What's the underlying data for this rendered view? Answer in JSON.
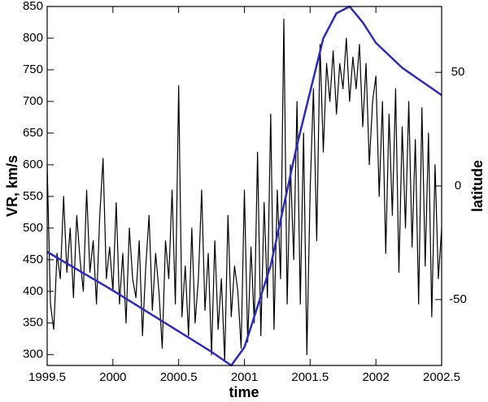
{
  "chart_data": {
    "type": "line",
    "xlabel": "time",
    "ylabel": "VR, km/s",
    "y2label": "latitude",
    "xlim": [
      1999.5,
      2002.5
    ],
    "xticks": [
      1999.5,
      2000,
      2000.5,
      2001,
      2001.5,
      2002,
      2002.5
    ],
    "ylim": [
      283,
      850
    ],
    "yticks": [
      300,
      350,
      400,
      450,
      500,
      550,
      600,
      650,
      700,
      750,
      800,
      850
    ],
    "y2lim": [
      -79,
      79
    ],
    "y2ticks": [
      -50,
      0,
      50
    ],
    "series": [
      {
        "color": "#000000",
        "x": [
          1999.5,
          1999.525,
          1999.55,
          1999.575,
          1999.6,
          1999.625,
          1999.65,
          1999.675,
          1999.7,
          1999.725,
          1999.75,
          1999.775,
          1999.8,
          1999.825,
          1999.85,
          1999.875,
          1999.9,
          1999.925,
          1999.95,
          1999.975,
          2000,
          2000.025,
          2000.05,
          2000.075,
          2000.1,
          2000.125,
          2000.15,
          2000.175,
          2000.2,
          2000.225,
          2000.25,
          2000.275,
          2000.3,
          2000.325,
          2000.35,
          2000.375,
          2000.4,
          2000.425,
          2000.45,
          2000.475,
          2000.5,
          2000.525,
          2000.55,
          2000.575,
          2000.6,
          2000.625,
          2000.65,
          2000.675,
          2000.7,
          2000.725,
          2000.75,
          2000.775,
          2000.8,
          2000.825,
          2000.85,
          2000.875,
          2000.9,
          2000.925,
          2000.95,
          2000.975,
          2001,
          2001.025,
          2001.05,
          2001.075,
          2001.1,
          2001.125,
          2001.15,
          2001.175,
          2001.2,
          2001.225,
          2001.25,
          2001.275,
          2001.3,
          2001.325,
          2001.35,
          2001.375,
          2001.4,
          2001.425,
          2001.45,
          2001.475,
          2001.5,
          2001.525,
          2001.55,
          2001.575,
          2001.6,
          2001.625,
          2001.65,
          2001.675,
          2001.7,
          2001.725,
          2001.75,
          2001.775,
          2001.8,
          2001.825,
          2001.85,
          2001.875,
          2001.9,
          2001.925,
          2001.95,
          2001.975,
          2002,
          2002.025,
          2002.05,
          2002.075,
          2002.1,
          2002.125,
          2002.15,
          2002.175,
          2002.2,
          2002.225,
          2002.25,
          2002.275,
          2002.3,
          2002.325,
          2002.35,
          2002.375,
          2002.4,
          2002.425,
          2002.45,
          2002.475,
          2002.5
        ],
        "values": [
          600,
          380,
          340,
          460,
          420,
          550,
          430,
          500,
          390,
          520,
          450,
          400,
          560,
          430,
          480,
          380,
          520,
          610,
          420,
          470,
          400,
          540,
          380,
          460,
          350,
          500,
          420,
          390,
          480,
          330,
          440,
          520,
          370,
          460,
          400,
          310,
          480,
          420,
          560,
          380,
          725,
          360,
          440,
          330,
          500,
          350,
          420,
          560,
          370,
          460,
          300,
          480,
          340,
          420,
          290,
          520,
          360,
          440,
          400,
          310,
          560,
          320,
          470,
          350,
          620,
          330,
          540,
          390,
          680,
          340,
          560,
          420,
          830,
          380,
          600,
          450,
          700,
          380,
          650,
          300,
          560,
          720,
          480,
          790,
          620,
          760,
          700,
          780,
          680,
          760,
          720,
          800,
          700,
          770,
          720,
          790,
          660,
          760,
          600,
          700,
          740,
          550,
          700,
          460,
          680,
          520,
          720,
          430,
          660,
          500,
          700,
          470,
          640,
          380,
          690,
          440,
          650,
          360,
          600,
          420,
          500
        ]
      },
      {
        "color": "#2b2bc0",
        "axis": "y2",
        "x": [
          1999.5,
          2000,
          2000.5,
          2000.75,
          2000.9,
          2001,
          2001.2,
          2001.4,
          2001.6,
          2001.7,
          2001.8,
          2001.9,
          2002,
          2002.2,
          2002.5
        ],
        "values": [
          -29,
          -46,
          -64,
          -73,
          -79,
          -71,
          -35,
          18,
          65,
          76,
          79,
          72,
          63,
          52,
          40
        ]
      }
    ]
  }
}
